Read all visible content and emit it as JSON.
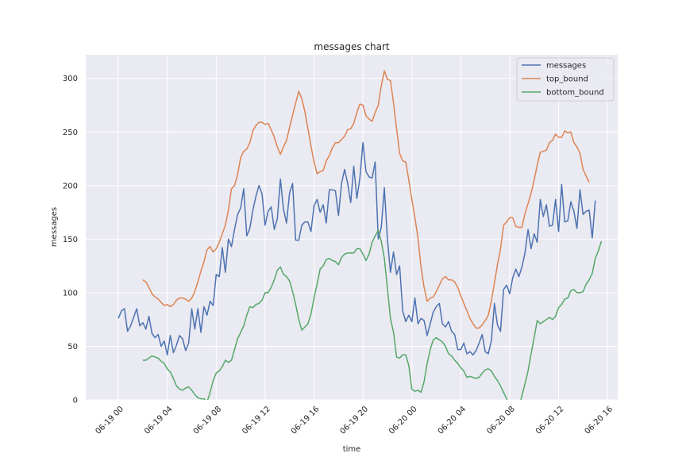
{
  "chart_data": {
    "type": "line",
    "title": "messages chart",
    "xlabel": "time",
    "ylabel": "messages",
    "x_start": "2019-06-19 00:00",
    "x_step_minutes": 15,
    "xlim": [
      "2019-06-18 21:20",
      "2019-06-20 16:50"
    ],
    "ylim": [
      0,
      322
    ],
    "yticks": [
      0,
      50,
      100,
      150,
      200,
      250,
      300
    ],
    "xticks": [
      {
        "value": "2019-06-19 00:00",
        "label": "06-19 00"
      },
      {
        "value": "2019-06-19 04:00",
        "label": "06-19 04"
      },
      {
        "value": "2019-06-19 08:00",
        "label": "06-19 08"
      },
      {
        "value": "2019-06-19 12:00",
        "label": "06-19 12"
      },
      {
        "value": "2019-06-19 16:00",
        "label": "06-19 16"
      },
      {
        "value": "2019-06-19 20:00",
        "label": "06-19 20"
      },
      {
        "value": "2019-06-20 00:00",
        "label": "06-20 00"
      },
      {
        "value": "2019-06-20 04:00",
        "label": "06-20 04"
      },
      {
        "value": "2019-06-20 08:00",
        "label": "06-20 08"
      },
      {
        "value": "2019-06-20 12:00",
        "label": "06-20 12"
      },
      {
        "value": "2019-06-20 16:00",
        "label": "06-20 16"
      }
    ],
    "grid": true,
    "legend_position": "top-right",
    "series": [
      {
        "name": "messages",
        "color": "#4c72b0",
        "start_index": 0,
        "values": [
          76,
          83,
          85,
          64,
          69,
          77,
          85,
          69,
          72,
          66,
          78,
          62,
          58,
          61,
          50,
          55,
          42,
          60,
          44,
          51,
          60,
          57,
          46,
          53,
          85,
          66,
          85,
          63,
          87,
          79,
          92,
          88,
          117,
          115,
          142,
          119,
          150,
          143,
          159,
          173,
          179,
          197,
          153,
          160,
          177,
          190,
          200,
          192,
          163,
          176,
          180,
          159,
          169,
          206,
          178,
          165,
          193,
          202,
          149,
          149,
          163,
          166,
          166,
          157,
          181,
          187,
          175,
          182,
          165,
          196,
          196,
          195,
          172,
          202,
          215,
          202,
          184,
          218,
          188,
          207,
          240,
          213,
          208,
          207,
          222,
          150,
          161,
          198,
          150,
          119,
          138,
          117,
          125,
          83,
          73,
          79,
          73,
          95,
          71,
          76,
          74,
          60,
          71,
          82,
          87,
          90,
          71,
          68,
          73,
          64,
          61,
          47,
          47,
          53,
          43,
          45,
          42,
          46,
          53,
          61,
          45,
          43,
          55,
          90,
          70,
          64,
          103,
          107,
          99,
          114,
          122,
          115,
          124,
          137,
          159,
          141,
          155,
          147,
          187,
          171,
          182,
          162,
          163,
          187,
          157,
          201,
          166,
          167,
          185,
          176,
          160,
          196,
          173,
          176,
          177,
          151,
          186
        ]
      },
      {
        "name": "top_bound",
        "color": "#dd8452",
        "start_index": 8,
        "values": [
          112,
          110,
          105,
          99,
          96,
          94,
          91,
          88,
          89,
          87,
          89,
          93,
          95,
          95,
          94,
          92,
          95,
          101,
          110,
          120,
          129,
          140,
          143,
          138,
          141,
          147,
          155,
          163,
          177,
          197,
          200,
          210,
          226,
          232,
          234,
          240,
          251,
          256,
          259,
          259,
          257,
          258,
          252,
          245,
          236,
          229,
          236,
          242,
          254,
          266,
          277,
          288,
          281,
          269,
          253,
          237,
          222,
          211,
          213,
          214,
          223,
          228,
          235,
          240,
          240,
          243,
          246,
          252,
          253,
          258,
          268,
          276,
          275,
          265,
          262,
          260,
          268,
          275,
          293,
          307,
          299,
          298,
          277,
          253,
          230,
          223,
          222,
          205,
          187,
          170,
          151,
          124,
          105,
          92,
          95,
          96,
          101,
          107,
          113,
          115,
          112,
          112,
          110,
          105,
          97,
          90,
          83,
          76,
          71,
          67,
          67,
          70,
          74,
          79,
          92,
          109,
          126,
          141,
          163,
          166,
          170,
          170,
          162,
          161,
          161,
          174,
          183,
          193,
          205,
          219,
          231,
          232,
          233,
          240,
          242,
          248,
          245,
          245,
          251,
          249,
          250,
          240,
          236,
          230,
          215,
          209,
          203
        ]
      },
      {
        "name": "bottom_bound",
        "color": "#55a868",
        "start_index": 8,
        "values": [
          37,
          37,
          39,
          41,
          40,
          39,
          36,
          34,
          29,
          26,
          20,
          13,
          10,
          9,
          11,
          12,
          9,
          5,
          2,
          1,
          1,
          -2,
          7,
          18,
          25,
          27,
          31,
          37,
          35,
          37,
          47,
          57,
          63,
          69,
          79,
          87,
          86,
          89,
          90,
          93,
          100,
          100,
          105,
          112,
          121,
          124,
          117,
          115,
          111,
          101,
          89,
          75,
          65,
          68,
          71,
          80,
          95,
          108,
          122,
          125,
          131,
          132,
          130,
          129,
          126,
          133,
          136,
          137,
          137,
          137,
          141,
          141,
          136,
          130,
          136,
          147,
          153,
          158,
          148,
          132,
          104,
          76,
          63,
          40,
          39,
          42,
          42,
          32,
          10,
          8,
          9,
          7,
          17,
          34,
          47,
          56,
          58,
          56,
          54,
          50,
          43,
          41,
          37,
          34,
          30,
          27,
          21,
          22,
          21,
          20,
          21,
          25,
          28,
          29,
          27,
          22,
          18,
          13,
          7,
          1,
          -10,
          -20,
          -33,
          -8,
          4,
          15,
          27,
          43,
          58,
          74,
          71,
          73,
          75,
          77,
          75,
          78,
          86,
          89,
          94,
          95,
          102,
          103,
          100,
          100,
          101,
          108,
          112,
          118,
          132,
          139,
          148
        ]
      }
    ]
  }
}
